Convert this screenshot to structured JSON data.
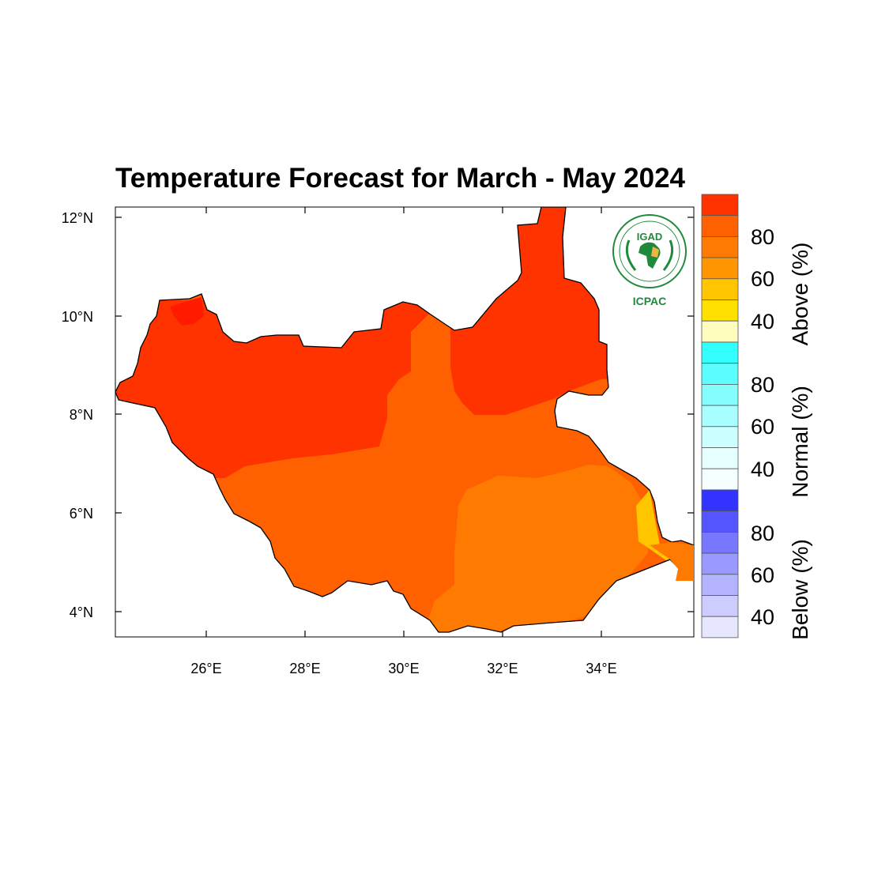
{
  "title": "Temperature Forecast for March - May 2024",
  "logo": {
    "top_text": "IGAD",
    "bottom_text": "ICPAC"
  },
  "axes": {
    "lon_ticks": [
      "26°E",
      "28°E",
      "30°E",
      "32°E",
      "34°E"
    ],
    "lat_ticks": [
      "12°N",
      "10°N",
      "8°N",
      "6°N",
      "4°N"
    ]
  },
  "colorbar": {
    "above": {
      "title": "Above (%)",
      "colors": [
        "#ff3300",
        "#ff6100",
        "#ff7a00",
        "#ff9500",
        "#ffc600",
        "#ffe000",
        "#fffcc0"
      ],
      "labels": [
        "80",
        "60",
        "40"
      ]
    },
    "normal": {
      "title": "Normal (%)",
      "colors": [
        "#33ffff",
        "#5cfdfd",
        "#85fefe",
        "#a9ffff",
        "#ccffff",
        "#e6ffff",
        "#f5ffff"
      ],
      "labels": [
        "80",
        "60",
        "40"
      ]
    },
    "below": {
      "title": "Below (%)",
      "colors": [
        "#3333ff",
        "#5555ff",
        "#7777ff",
        "#9999ff",
        "#b3b3ff",
        "#ccccff",
        "#e6e6ff"
      ],
      "labels": [
        "80",
        "60",
        "40"
      ]
    }
  },
  "map_colors": {
    "above_90": "#ff3300",
    "above_80": "#ff6100",
    "above_70": "#ff7a00",
    "above_50": "#ffc600",
    "above_max": "#ff1a00"
  }
}
